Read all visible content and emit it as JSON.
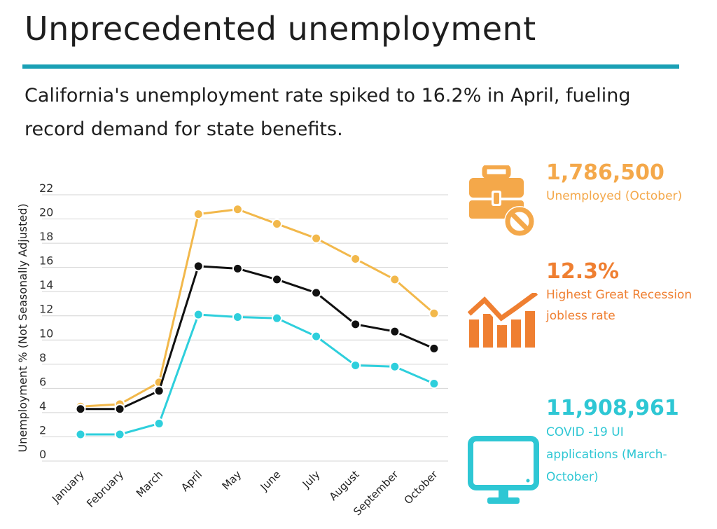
{
  "title": "Unprecedented unemployment",
  "subtitle": "California's unemployment rate spiked to 16.2% in April, fueling record demand for state benefits.",
  "colors": {
    "rule": "#1aa0b5",
    "yellow": "#f2b84b",
    "black": "#111111",
    "cyan": "#2ecfdc",
    "stat_yellow": "#f4a84a",
    "stat_orange": "#ef7f31",
    "stat_cyan": "#2ec7d4",
    "grid": "#d4d4d4"
  },
  "stats": [
    {
      "value": "1,786,500",
      "label": "Unemployed (October)",
      "icon": "briefcase-blocked-icon"
    },
    {
      "value": "12.3%",
      "label": "Highest Great Recession jobless rate",
      "icon": "bar-trend-icon"
    },
    {
      "value": "11,908,961",
      "label": "COVID -19 UI applications (March-October)",
      "icon": "computer-monitor-icon"
    }
  ],
  "chart_data": {
    "type": "line",
    "ylabel": "Unemployment % (Not Seasonally Adjusted)",
    "xlabel": "",
    "ylim": [
      0,
      22
    ],
    "yticks": [
      0,
      2,
      4,
      6,
      8,
      10,
      12,
      14,
      16,
      18,
      20,
      22
    ],
    "grid": true,
    "categories": [
      "January",
      "February",
      "March",
      "April",
      "May",
      "June",
      "July",
      "August",
      "September",
      "October"
    ],
    "series": [
      {
        "color": "#f2b84b",
        "values": [
          4.5,
          4.7,
          6.5,
          20.4,
          20.8,
          19.6,
          18.4,
          16.7,
          15.0,
          12.2
        ]
      },
      {
        "color": "#111111",
        "values": [
          4.3,
          4.3,
          5.8,
          16.1,
          15.9,
          15.0,
          13.9,
          11.3,
          10.7,
          9.3
        ]
      },
      {
        "color": "#2ecfdc",
        "values": [
          2.2,
          2.2,
          3.1,
          12.1,
          11.9,
          11.8,
          10.3,
          7.9,
          7.8,
          6.4
        ]
      }
    ]
  }
}
